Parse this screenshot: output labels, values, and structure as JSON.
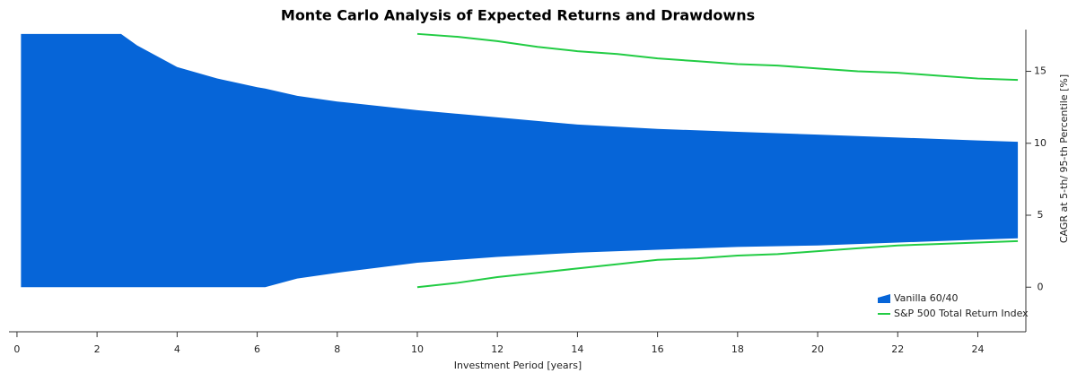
{
  "chart_data": {
    "type": "band",
    "title": "Monte Carlo Analysis of Expected Returns and Drawdowns",
    "x_label": "Investment Period [years]",
    "y_label": "CAGR at 5-th/ 95-th Percentile [%]",
    "xlim": [
      -0.2,
      25.2
    ],
    "ylim": [
      -3.1,
      17.9
    ],
    "xticks": [
      0,
      2,
      4,
      6,
      8,
      10,
      12,
      14,
      16,
      18,
      20,
      22,
      24
    ],
    "yticks": [
      0,
      5,
      10,
      15
    ],
    "legend": "lower right",
    "series": [
      {
        "name": "Vanilla 60/40",
        "color": "#0665d8",
        "style": "area",
        "x": [
          0.1,
          1,
          2,
          2.6,
          3,
          4,
          5,
          6,
          6.2,
          7,
          8,
          10,
          12,
          14,
          16,
          18,
          20,
          22,
          24,
          25
        ],
        "upper": [
          17.6,
          17.6,
          17.6,
          17.6,
          16.8,
          15.3,
          14.5,
          13.9,
          13.8,
          13.3,
          12.9,
          12.3,
          11.8,
          11.3,
          11.0,
          10.8,
          10.6,
          10.4,
          10.2,
          10.1
        ],
        "lower": [
          0,
          0,
          0,
          0,
          0,
          0,
          0,
          0,
          0,
          0.6,
          1.0,
          1.7,
          2.1,
          2.4,
          2.6,
          2.8,
          2.9,
          3.1,
          3.3,
          3.4
        ]
      },
      {
        "name": "S&P 500 Total Return Index",
        "color": "#22cc44",
        "style": "line",
        "x": [
          10,
          11,
          12,
          13,
          14,
          15,
          16,
          17,
          18,
          19,
          20,
          21,
          22,
          23,
          24,
          25
        ],
        "upper": [
          17.6,
          17.4,
          17.1,
          16.7,
          16.4,
          16.2,
          15.9,
          15.7,
          15.5,
          15.4,
          15.2,
          15.0,
          14.9,
          14.7,
          14.5,
          14.4
        ],
        "lower": [
          0.0,
          0.3,
          0.7,
          1.0,
          1.3,
          1.6,
          1.9,
          2.0,
          2.2,
          2.3,
          2.5,
          2.7,
          2.9,
          3.0,
          3.1,
          3.2
        ]
      }
    ]
  }
}
